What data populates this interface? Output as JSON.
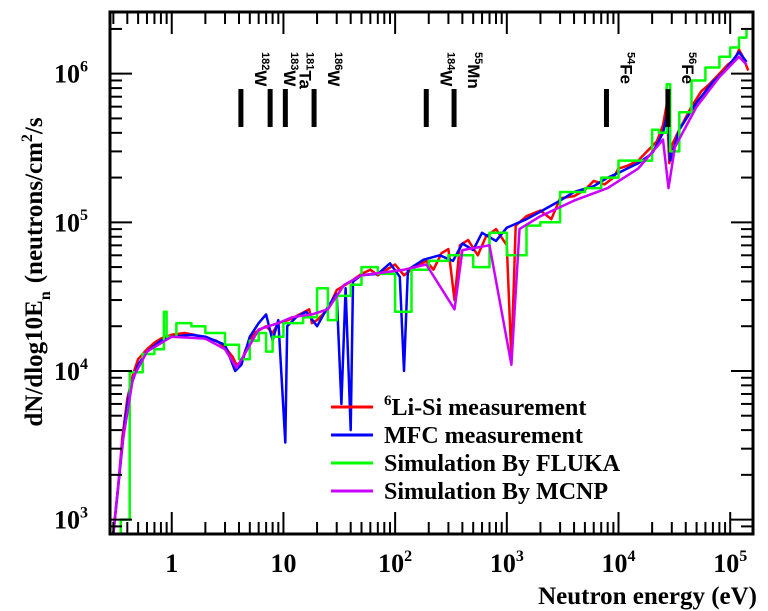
{
  "chart_data": {
    "type": "line",
    "xlabel": "Neutron energy (eV)",
    "ylabel_main": "dN/dlog10E",
    "ylabel_sub": "n",
    "ylabel_units": "(neutrons/cm",
    "ylabel_units_sup": "2",
    "ylabel_units_end": "/s",
    "x_scale": "log",
    "y_scale": "log",
    "xlim": [
      0.28,
      160000
    ],
    "ylim": [
      800,
      2600000
    ],
    "grid": false,
    "legend_position": "bottom-right",
    "x_ticks": [
      {
        "value": 1,
        "base": "1",
        "exp": ""
      },
      {
        "value": 10,
        "base": "10",
        "exp": ""
      },
      {
        "value": 100,
        "base": "10",
        "exp": "2"
      },
      {
        "value": 1000,
        "base": "10",
        "exp": "3"
      },
      {
        "value": 10000,
        "base": "10",
        "exp": "4"
      },
      {
        "value": 100000,
        "base": "10",
        "exp": "5"
      }
    ],
    "y_ticks": [
      {
        "value": 1000,
        "base": "10",
        "exp": "3"
      },
      {
        "value": 10000,
        "base": "10",
        "exp": "4"
      },
      {
        "value": 100000,
        "base": "10",
        "exp": "5"
      },
      {
        "value": 1000000,
        "base": "10",
        "exp": "6"
      }
    ],
    "markers": [
      {
        "energy": 4.16,
        "sup": "182",
        "label": "W"
      },
      {
        "energy": 7.6,
        "sup": "183",
        "label": "W"
      },
      {
        "energy": 10.4,
        "sup": "181",
        "label": "Ta"
      },
      {
        "energy": 18.8,
        "sup": "186",
        "label": "W"
      },
      {
        "energy": 190,
        "sup": "184",
        "label": "W"
      },
      {
        "energy": 337,
        "sup": "55",
        "label": "Mn"
      },
      {
        "energy": 7800,
        "sup": "54",
        "label": "Fe"
      },
      {
        "energy": 27700,
        "sup": "56",
        "label": "Fe"
      }
    ],
    "series": [
      {
        "name": "Li-Si measurement",
        "name_sup": "6",
        "color": "#ff0000",
        "style": "line",
        "points": [
          [
            0.3,
            800
          ],
          [
            0.33,
            1600
          ],
          [
            0.36,
            3500
          ],
          [
            0.4,
            6500
          ],
          [
            0.45,
            9500
          ],
          [
            0.5,
            12000
          ],
          [
            0.6,
            14000
          ],
          [
            0.7,
            15500
          ],
          [
            0.8,
            16500
          ],
          [
            1,
            17500
          ],
          [
            1.3,
            18000
          ],
          [
            1.6,
            17500
          ],
          [
            2,
            16500
          ],
          [
            2.5,
            16000
          ],
          [
            3,
            14500
          ],
          [
            3.5,
            12500
          ],
          [
            3.8,
            11000
          ],
          [
            4.2,
            11500
          ],
          [
            4.6,
            14000
          ],
          [
            5.5,
            18000
          ],
          [
            7,
            20000
          ],
          [
            8,
            18000
          ],
          [
            9,
            21000
          ],
          [
            11,
            22000
          ],
          [
            14,
            24000
          ],
          [
            17,
            26000
          ],
          [
            18,
            21000
          ],
          [
            20,
            22000
          ],
          [
            25,
            26000
          ],
          [
            30,
            35000
          ],
          [
            40,
            40000
          ],
          [
            50,
            45000
          ],
          [
            60,
            48000
          ],
          [
            70,
            44000
          ],
          [
            80,
            47000
          ],
          [
            100,
            52000
          ],
          [
            120,
            44000
          ],
          [
            150,
            50000
          ],
          [
            190,
            55000
          ],
          [
            220,
            48000
          ],
          [
            260,
            62000
          ],
          [
            300,
            66000
          ],
          [
            340,
            30000
          ],
          [
            380,
            70000
          ],
          [
            450,
            76000
          ],
          [
            550,
            60000
          ],
          [
            650,
            80000
          ],
          [
            800,
            90000
          ],
          [
            1000,
            70000
          ],
          [
            1100,
            12000
          ],
          [
            1200,
            95000
          ],
          [
            1500,
            110000
          ],
          [
            2000,
            120000
          ],
          [
            2500,
            105000
          ],
          [
            3000,
            145000
          ],
          [
            4000,
            150000
          ],
          [
            5000,
            165000
          ],
          [
            6000,
            190000
          ],
          [
            7500,
            180000
          ],
          [
            9000,
            200000
          ],
          [
            10000,
            230000
          ],
          [
            12000,
            240000
          ],
          [
            15000,
            260000
          ],
          [
            18000,
            300000
          ],
          [
            22000,
            350000
          ],
          [
            25000,
            450000
          ],
          [
            27000,
            620000
          ],
          [
            28500,
            250000
          ],
          [
            30000,
            330000
          ],
          [
            35000,
            420000
          ],
          [
            45000,
            600000
          ],
          [
            55000,
            760000
          ],
          [
            65000,
            850000
          ],
          [
            80000,
            1000000
          ],
          [
            95000,
            1150000
          ],
          [
            110000,
            1250000
          ],
          [
            120000,
            1450000
          ],
          [
            130000,
            1300000
          ],
          [
            145000,
            1050000
          ]
        ]
      },
      {
        "name": "MFC measurement",
        "name_sup": "",
        "color": "#0000ff",
        "style": "line",
        "points": [
          [
            0.3,
            800
          ],
          [
            0.34,
            2000
          ],
          [
            0.38,
            4500
          ],
          [
            0.42,
            7500
          ],
          [
            0.5,
            11000
          ],
          [
            0.6,
            13500
          ],
          [
            0.8,
            16000
          ],
          [
            1,
            17000
          ],
          [
            1.5,
            17500
          ],
          [
            2,
            17000
          ],
          [
            3,
            15000
          ],
          [
            3.7,
            10000
          ],
          [
            4.2,
            11000
          ],
          [
            5,
            17000
          ],
          [
            6,
            21000
          ],
          [
            7,
            24000
          ],
          [
            8,
            16000
          ],
          [
            9,
            22000
          ],
          [
            10.4,
            3300
          ],
          [
            10.8,
            20000
          ],
          [
            13,
            23000
          ],
          [
            16,
            25000
          ],
          [
            20,
            20000
          ],
          [
            25,
            27000
          ],
          [
            30,
            33000
          ],
          [
            33,
            6000
          ],
          [
            36,
            36000
          ],
          [
            40,
            4000
          ],
          [
            42,
            40000
          ],
          [
            50,
            44000
          ],
          [
            70,
            45000
          ],
          [
            90,
            53000
          ],
          [
            110,
            43000
          ],
          [
            120,
            10000
          ],
          [
            130,
            48000
          ],
          [
            180,
            56000
          ],
          [
            250,
            60000
          ],
          [
            330,
            55000
          ],
          [
            400,
            72000
          ],
          [
            500,
            65000
          ],
          [
            600,
            85000
          ],
          [
            800,
            75000
          ],
          [
            1000,
            92000
          ],
          [
            1500,
            105000
          ],
          [
            2000,
            118000
          ],
          [
            3000,
            140000
          ],
          [
            4000,
            160000
          ],
          [
            6000,
            175000
          ],
          [
            8000,
            200000
          ],
          [
            10000,
            215000
          ],
          [
            15000,
            250000
          ],
          [
            20000,
            290000
          ],
          [
            25000,
            400000
          ],
          [
            27500,
            560000
          ],
          [
            29000,
            260000
          ],
          [
            35000,
            420000
          ],
          [
            50000,
            640000
          ],
          [
            70000,
            880000
          ],
          [
            90000,
            1050000
          ],
          [
            120000,
            1400000
          ],
          [
            140000,
            1200000
          ]
        ]
      },
      {
        "name": "Simulation By FLUKA",
        "name_sup": "",
        "color": "#00ff00",
        "style": "step",
        "points": [
          [
            0.3,
            800
          ],
          [
            0.35,
            1000
          ],
          [
            0.42,
            9800
          ],
          [
            0.55,
            13000
          ],
          [
            0.7,
            14000
          ],
          [
            0.85,
            25000
          ],
          [
            0.9,
            17000
          ],
          [
            1.1,
            21000
          ],
          [
            1.5,
            20000
          ],
          [
            2,
            18000
          ],
          [
            3,
            15000
          ],
          [
            4,
            12000
          ],
          [
            5,
            16000
          ],
          [
            6,
            18000
          ],
          [
            7,
            13500
          ],
          [
            8,
            17000
          ],
          [
            10,
            21000
          ],
          [
            15,
            23000
          ],
          [
            20,
            36000
          ],
          [
            25,
            22000
          ],
          [
            30,
            32000
          ],
          [
            40,
            38000
          ],
          [
            50,
            50000
          ],
          [
            70,
            45000
          ],
          [
            100,
            25000
          ],
          [
            140,
            48000
          ],
          [
            200,
            55000
          ],
          [
            300,
            60000
          ],
          [
            500,
            50000
          ],
          [
            700,
            85000
          ],
          [
            1000,
            60000
          ],
          [
            1500,
            95000
          ],
          [
            2000,
            100000
          ],
          [
            3000,
            160000
          ],
          [
            5000,
            170000
          ],
          [
            7000,
            200000
          ],
          [
            10000,
            260000
          ],
          [
            15000,
            260000
          ],
          [
            20000,
            420000
          ],
          [
            23000,
            400000
          ],
          [
            27000,
            850000
          ],
          [
            29000,
            300000
          ],
          [
            35000,
            550000
          ],
          [
            45000,
            900000
          ],
          [
            60000,
            1100000
          ],
          [
            80000,
            1300000
          ],
          [
            100000,
            1500000
          ],
          [
            120000,
            1750000
          ],
          [
            140000,
            2000000
          ]
        ]
      },
      {
        "name": "Simulation By MCNP",
        "name_sup": "",
        "color": "#cc00ff",
        "style": "line",
        "points": [
          [
            0.3,
            800
          ],
          [
            0.36,
            3200
          ],
          [
            0.45,
            9000
          ],
          [
            0.6,
            13500
          ],
          [
            1,
            17000
          ],
          [
            2,
            16500
          ],
          [
            3,
            14000
          ],
          [
            3.8,
            10500
          ],
          [
            4.5,
            13000
          ],
          [
            6,
            19000
          ],
          [
            9,
            21000
          ],
          [
            12,
            23000
          ],
          [
            18,
            24000
          ],
          [
            25,
            26000
          ],
          [
            35,
            38000
          ],
          [
            50,
            44000
          ],
          [
            80,
            46000
          ],
          [
            120,
            48000
          ],
          [
            190,
            52000
          ],
          [
            340,
            26000
          ],
          [
            400,
            65000
          ],
          [
            700,
            70000
          ],
          [
            1100,
            11000
          ],
          [
            1300,
            90000
          ],
          [
            2000,
            110000
          ],
          [
            4000,
            140000
          ],
          [
            8000,
            170000
          ],
          [
            15000,
            230000
          ],
          [
            25000,
            360000
          ],
          [
            28000,
            170000
          ],
          [
            32000,
            320000
          ],
          [
            50000,
            600000
          ],
          [
            80000,
            950000
          ],
          [
            120000,
            1300000
          ],
          [
            140000,
            1150000
          ]
        ]
      }
    ]
  }
}
